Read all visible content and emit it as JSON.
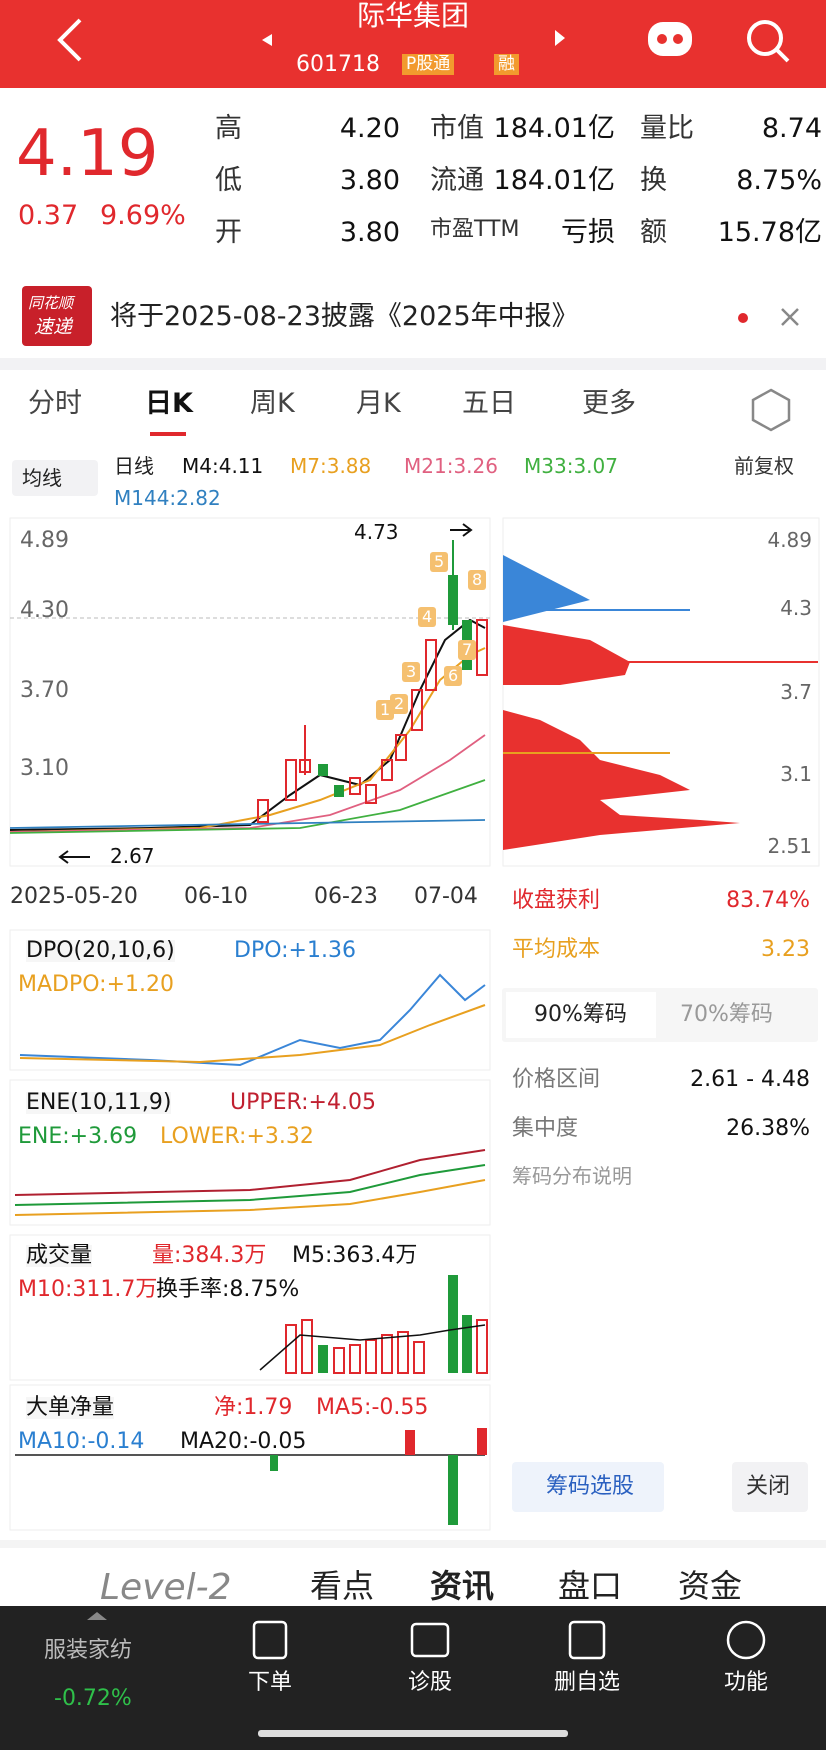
{
  "header": {
    "title": "际华集团",
    "code": "601718",
    "badge_connect": "P股通",
    "badge_margin": "融"
  },
  "quote": {
    "price": "4.19",
    "change": "0.37",
    "change_pct": "9.69%",
    "fields": [
      {
        "label": "高",
        "value": "4.20"
      },
      {
        "label": "低",
        "value": "3.80"
      },
      {
        "label": "开",
        "value": "3.80"
      },
      {
        "label": "市值",
        "value": "184.01亿"
      },
      {
        "label": "流通",
        "value": "184.01亿"
      },
      {
        "label": "市盈TTM",
        "value": "亏损"
      },
      {
        "label": "量比",
        "value": "8.74"
      },
      {
        "label": "换",
        "value": "8.75%"
      },
      {
        "label": "额",
        "value": "15.78亿"
      }
    ]
  },
  "notice": {
    "logo_top": "同花顺",
    "logo_bottom": "速递",
    "text": "将于2025-08-23披露《2025年中报》"
  },
  "tabs": [
    "分时",
    "日K",
    "周K",
    "月K",
    "五日",
    "更多"
  ],
  "ma_bar": {
    "selector": "均线",
    "period": "日线",
    "items": [
      "M4:4.11",
      "M7:3.88",
      "M21:3.26",
      "M33:3.07",
      "M144:2.82"
    ],
    "adjust": "前复权"
  },
  "kline": {
    "price_labels": [
      "4.89",
      "4.30",
      "3.70",
      "3.10"
    ],
    "high_label": "4.73",
    "low_label": "2.67",
    "markers": [
      "1",
      "2",
      "3",
      "4",
      "5",
      "6",
      "7",
      "8"
    ],
    "dates": [
      "2025-05-20",
      "06-10",
      "06-23",
      "07-04"
    ]
  },
  "chip_axis": [
    "4.89",
    "4.3",
    "3.7",
    "3.1",
    "2.51"
  ],
  "indicators": [
    {
      "name": "DPO(20,10,6)",
      "items": [
        "DPO:+1.36",
        "MADPO:+1.20"
      ]
    },
    {
      "name": "ENE(10,11,9)",
      "items": [
        "UPPER:+4.05",
        "ENE:+3.69",
        "LOWER:+3.32"
      ]
    },
    {
      "name": "成交量",
      "items": [
        "量:384.3万",
        "M5:363.4万",
        "M10:311.7万",
        "换手率:8.75%"
      ]
    },
    {
      "name": "大单净量",
      "items": [
        "净:1.79",
        "MA5:-0.55",
        "MA10:-0.14",
        "MA20:-0.05"
      ]
    }
  ],
  "chips": {
    "rows": [
      {
        "label": "收盘获利",
        "value": "83.74%"
      },
      {
        "label": "平均成本",
        "value": "3.23"
      }
    ],
    "tabs": [
      "90%筹码",
      "70%筹码"
    ],
    "stats": [
      {
        "label": "价格区间",
        "value": "2.61 - 4.48"
      },
      {
        "label": "集中度",
        "value": "26.38%"
      }
    ],
    "explain": "筹码分布说明",
    "select": "筹码选股",
    "close": "关闭"
  },
  "bottom_tabs": [
    "Level-2",
    "看点",
    "资讯",
    "盘口",
    "资金"
  ],
  "nav": {
    "sector": "服装家纺",
    "sector_change": "-0.72%",
    "items": [
      "下单",
      "诊股",
      "删自选",
      "功能"
    ]
  }
}
